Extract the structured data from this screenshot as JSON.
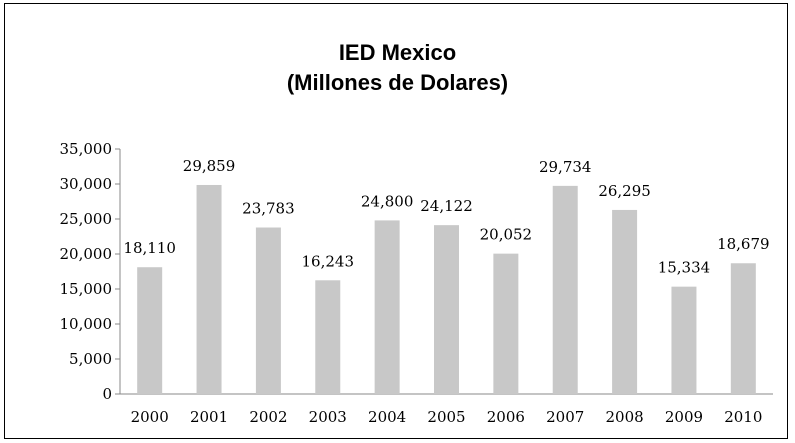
{
  "chart_data": {
    "type": "bar",
    "title": "IED Mexico",
    "subtitle": "(Millones de Dolares)",
    "categories": [
      "2000",
      "2001",
      "2002",
      "2003",
      "2004",
      "2005",
      "2006",
      "2007",
      "2008",
      "2009",
      "2010"
    ],
    "values": [
      18110,
      29859,
      23783,
      16243,
      24800,
      24122,
      20052,
      29734,
      26295,
      15334,
      18679
    ],
    "data_labels": [
      "18,110",
      "29,859",
      "23,783",
      "16,243",
      "24,800",
      "24,122",
      "20,052",
      "29,734",
      "26,295",
      "15,334",
      "18,679"
    ],
    "ylim": [
      0,
      35000
    ],
    "yticks": [
      0,
      5000,
      10000,
      15000,
      20000,
      25000,
      30000,
      35000
    ],
    "ytick_labels": [
      "0",
      "5,000",
      "10,000",
      "15,000",
      "20,000",
      "25,000",
      "30,000",
      "35,000"
    ],
    "xlabel": "",
    "ylabel": "",
    "grid": false,
    "legend": "none",
    "bar_color": "#c8c8c8"
  }
}
